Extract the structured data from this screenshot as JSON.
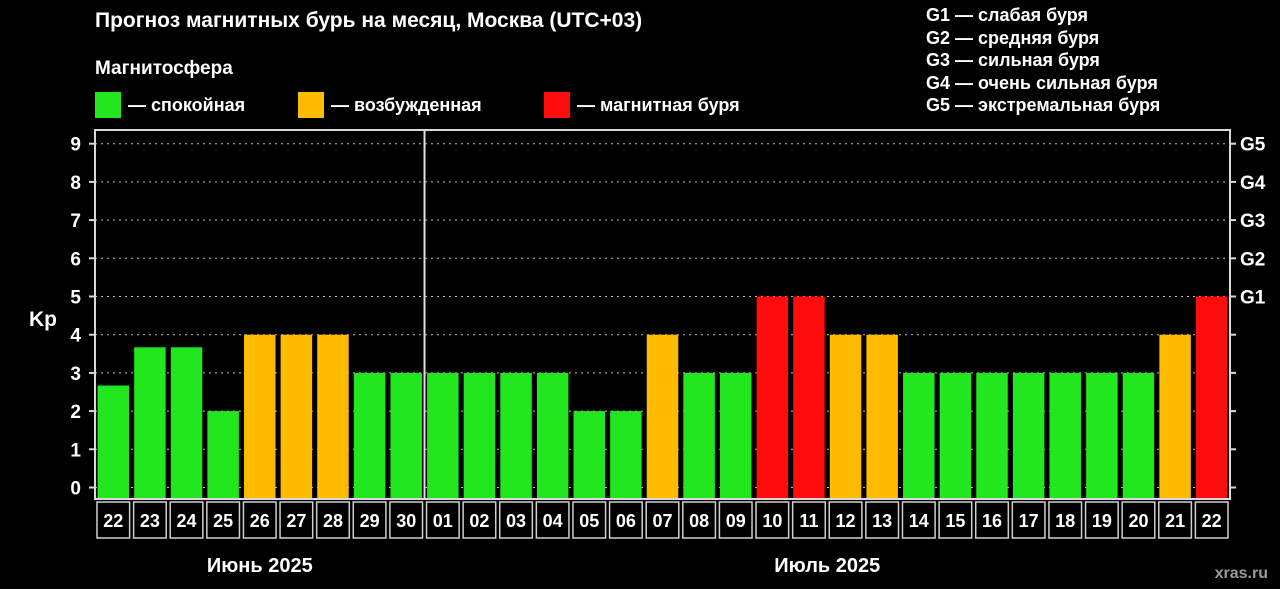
{
  "title": "Прогноз магнитных бурь на месяц, Москва (UTC+03)",
  "magnetosphere_label": "Магнитосфера",
  "legend": [
    {
      "key": "calm",
      "text": "— спокойная",
      "color": "#22e61e"
    },
    {
      "key": "excited",
      "text": "— возбужденная",
      "color": "#ffbb00"
    },
    {
      "key": "storm",
      "text": "— магнитная буря",
      "color": "#ff0c0c"
    }
  ],
  "storm_levels": [
    {
      "text": "G1 — слабая буря"
    },
    {
      "text": "G2 — средняя буря"
    },
    {
      "text": "G3 — сильная буря"
    },
    {
      "text": "G4 — очень сильная буря"
    },
    {
      "text": "G5 — экстремальная буря"
    }
  ],
  "watermark": "xras.ru",
  "chart_data": {
    "type": "bar",
    "title": "Прогноз магнитных бурь на месяц, Москва (UTC+03)",
    "ylabel": "Kp",
    "ylim": [
      0,
      9
    ],
    "yticks": [
      "0",
      "1",
      "2",
      "3",
      "4",
      "5",
      "6",
      "7",
      "8",
      "9"
    ],
    "right_axis": [
      {
        "value": 5,
        "label": "G1"
      },
      {
        "value": 6,
        "label": "G2"
      },
      {
        "value": 7,
        "label": "G3"
      },
      {
        "value": 8,
        "label": "G4"
      },
      {
        "value": 9,
        "label": "G5"
      }
    ],
    "grid": "dotted horizontal",
    "categories": [
      "22",
      "23",
      "24",
      "25",
      "26",
      "27",
      "28",
      "29",
      "30",
      "01",
      "02",
      "03",
      "04",
      "05",
      "06",
      "07",
      "08",
      "09",
      "10",
      "11",
      "12",
      "13",
      "14",
      "15",
      "16",
      "17",
      "18",
      "19",
      "20",
      "21",
      "22"
    ],
    "values": [
      2.67,
      3.67,
      3.67,
      2,
      4,
      4,
      4,
      3,
      3,
      3,
      3,
      3,
      3,
      2,
      2,
      4,
      3,
      3,
      5,
      5,
      4,
      4,
      3,
      3,
      3,
      3,
      3,
      3,
      3,
      4,
      5
    ],
    "levels": [
      "calm",
      "calm",
      "calm",
      "calm",
      "excited",
      "excited",
      "excited",
      "calm",
      "calm",
      "calm",
      "calm",
      "calm",
      "calm",
      "calm",
      "calm",
      "excited",
      "calm",
      "calm",
      "storm",
      "storm",
      "excited",
      "excited",
      "calm",
      "calm",
      "calm",
      "calm",
      "calm",
      "calm",
      "calm",
      "excited",
      "storm"
    ],
    "months": [
      {
        "label": "Июнь 2025",
        "first": 0,
        "last": 8
      },
      {
        "label": "Июль 2025",
        "first": 9,
        "last": 30
      }
    ],
    "colors": {
      "calm": "#22e61e",
      "excited": "#ffbb00",
      "storm": "#ff0c0c",
      "grid": "#bdbdbd",
      "frame": "#d9d9d9"
    }
  }
}
